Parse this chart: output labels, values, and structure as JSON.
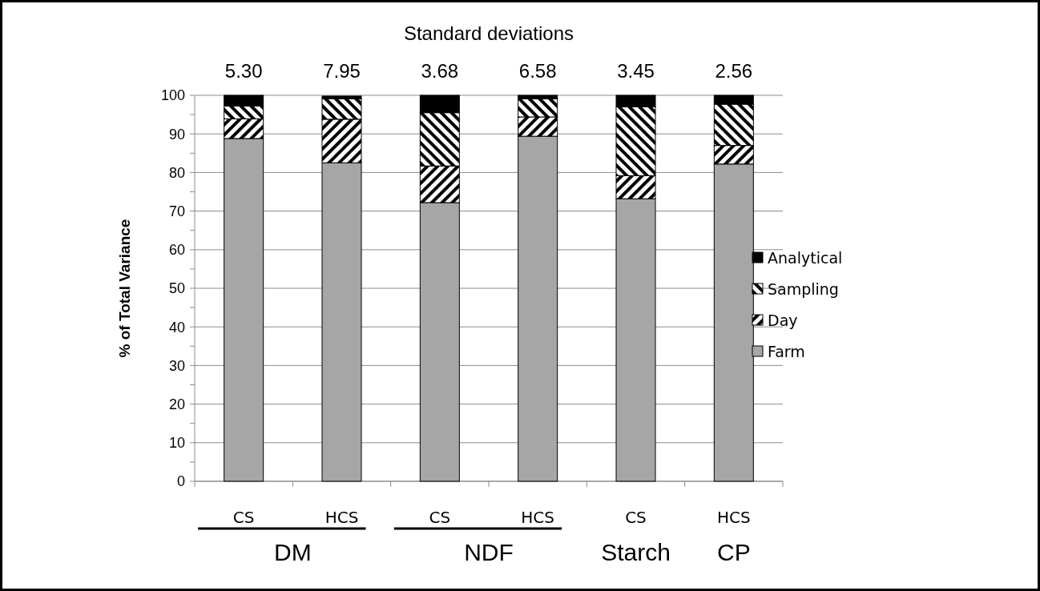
{
  "chart_data": {
    "type": "bar",
    "stacked": true,
    "ylabel": "% of Total Variance",
    "categories": [
      "CS",
      "HCS",
      "CS",
      "HCS",
      "CS",
      "HCS"
    ],
    "series": [
      {
        "name": "Farm",
        "color": "#a6a6a6",
        "values": [
          88.8,
          82.5,
          72.2,
          89.4,
          73.2,
          82.2
        ]
      },
      {
        "name": "Day",
        "color": "#000000",
        "values": [
          5.1,
          11.3,
          9.5,
          5.0,
          6.0,
          4.8
        ]
      },
      {
        "name": "Sampling",
        "color": "#000000",
        "values": [
          3.3,
          5.3,
          13.8,
          4.7,
          17.8,
          10.7
        ]
      },
      {
        "name": "Analytical",
        "color": "#000000",
        "values": [
          2.8,
          0.7,
          4.5,
          0.9,
          3.0,
          2.3
        ]
      }
    ],
    "ylim": [
      0,
      100
    ],
    "yticks": [
      0,
      {
        "value": 5,
        "label": null
      },
      10,
      {
        "value": 15,
        "label": null
      },
      20,
      {
        "value": 25,
        "label": null
      },
      30,
      {
        "value": 35,
        "label": null
      },
      40,
      {
        "value": 45,
        "label": null
      },
      50,
      {
        "value": 55,
        "label": null
      },
      60,
      {
        "value": 65,
        "label": null
      },
      70,
      {
        "value": 75,
        "label": null
      },
      80,
      {
        "value": 85,
        "label": null
      },
      90,
      {
        "value": 95,
        "label": null
      },
      100
    ],
    "grid": "y",
    "legend": "right",
    "annotations": [
      "Standard deviations",
      "5.30",
      "7.95",
      "3.68",
      "6.58",
      "3.45",
      "2.56",
      "DM",
      "NDF",
      "Starch",
      "CP"
    ]
  }
}
